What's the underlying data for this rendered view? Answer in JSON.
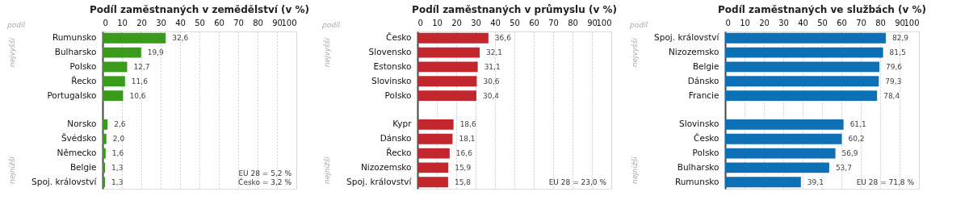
{
  "chart_data": [
    {
      "type": "bar",
      "orientation": "horizontal",
      "title": "Podíl zaměstnaných v zemědělství  (v %)",
      "categories": [
        "Rumunsko",
        "Bulharsko",
        "Polsko",
        "Řecko",
        "Portugalsko",
        null,
        "Norsko",
        "Švédsko",
        "Německo",
        "Belgie",
        "Spoj. království"
      ],
      "values": [
        32.6,
        19.9,
        12.7,
        11.6,
        10.6,
        null,
        2.6,
        2.0,
        1.6,
        1.3,
        1.3
      ],
      "value_labels": [
        "32,6",
        "19,9",
        "12,7",
        "11,6",
        "10,6",
        null,
        "2,6",
        "2,0",
        "1,6",
        "1,3",
        "1,3"
      ],
      "color": "#3a9a1c",
      "xlim": [
        0,
        100
      ],
      "xticks": [
        0,
        10,
        20,
        30,
        40,
        50,
        60,
        70,
        80,
        90,
        100
      ],
      "grid": "x",
      "annotations": [
        "podíl",
        "nejvyšší",
        "nejnižší",
        "EU 28 = 5,2 %",
        "Česko = 3,2 %"
      ]
    },
    {
      "type": "bar",
      "orientation": "horizontal",
      "title": "Podíl zaměstnaných v průmyslu  (v %)",
      "categories": [
        "Česko",
        "Slovensko",
        "Estonsko",
        "Slovinsko",
        "Polsko",
        null,
        "Kypr",
        "Dánsko",
        "Řecko",
        "Nizozemsko",
        "Spoj. království"
      ],
      "values": [
        36.6,
        32.1,
        31.1,
        30.6,
        30.4,
        null,
        18.6,
        18.1,
        16.6,
        15.9,
        15.8
      ],
      "value_labels": [
        "36,6",
        "32,1",
        "31,1",
        "30,6",
        "30,4",
        null,
        "18,6",
        "18,1",
        "16,6",
        "15,9",
        "15,8"
      ],
      "color": "#c1272d",
      "xlim": [
        0,
        100
      ],
      "xticks": [
        0,
        10,
        20,
        30,
        40,
        50,
        60,
        70,
        80,
        90,
        100
      ],
      "grid": "x",
      "annotations": [
        "podíl",
        "nejvyšší",
        "nejnižší",
        "EU 28 = 23,0 %"
      ]
    },
    {
      "type": "bar",
      "orientation": "horizontal",
      "title": "Podíl zaměstnaných ve službách  (v %)",
      "categories": [
        "Spoj. království",
        "Nizozemsko",
        "Belgie",
        "Dánsko",
        "Francie",
        null,
        "Slovinsko",
        "Česko",
        "Polsko",
        "Bulharsko",
        "Rumunsko"
      ],
      "values": [
        82.9,
        81.5,
        79.6,
        79.3,
        78.4,
        null,
        61.1,
        60.2,
        56.9,
        53.7,
        39.1
      ],
      "value_labels": [
        "82,9",
        "81,5",
        "79,6",
        "79,3",
        "78,4",
        null,
        "61,1",
        "60,2",
        "56,9",
        "53,7",
        "39,1"
      ],
      "color": "#0e70b4",
      "xlim": [
        0,
        100
      ],
      "xticks": [
        0,
        10,
        20,
        30,
        40,
        50,
        60,
        70,
        80,
        90,
        100
      ],
      "grid": "x",
      "annotations": [
        "podíl",
        "nejvyšší",
        "nejnižší",
        "EU 28 = 71,8 %"
      ]
    }
  ]
}
